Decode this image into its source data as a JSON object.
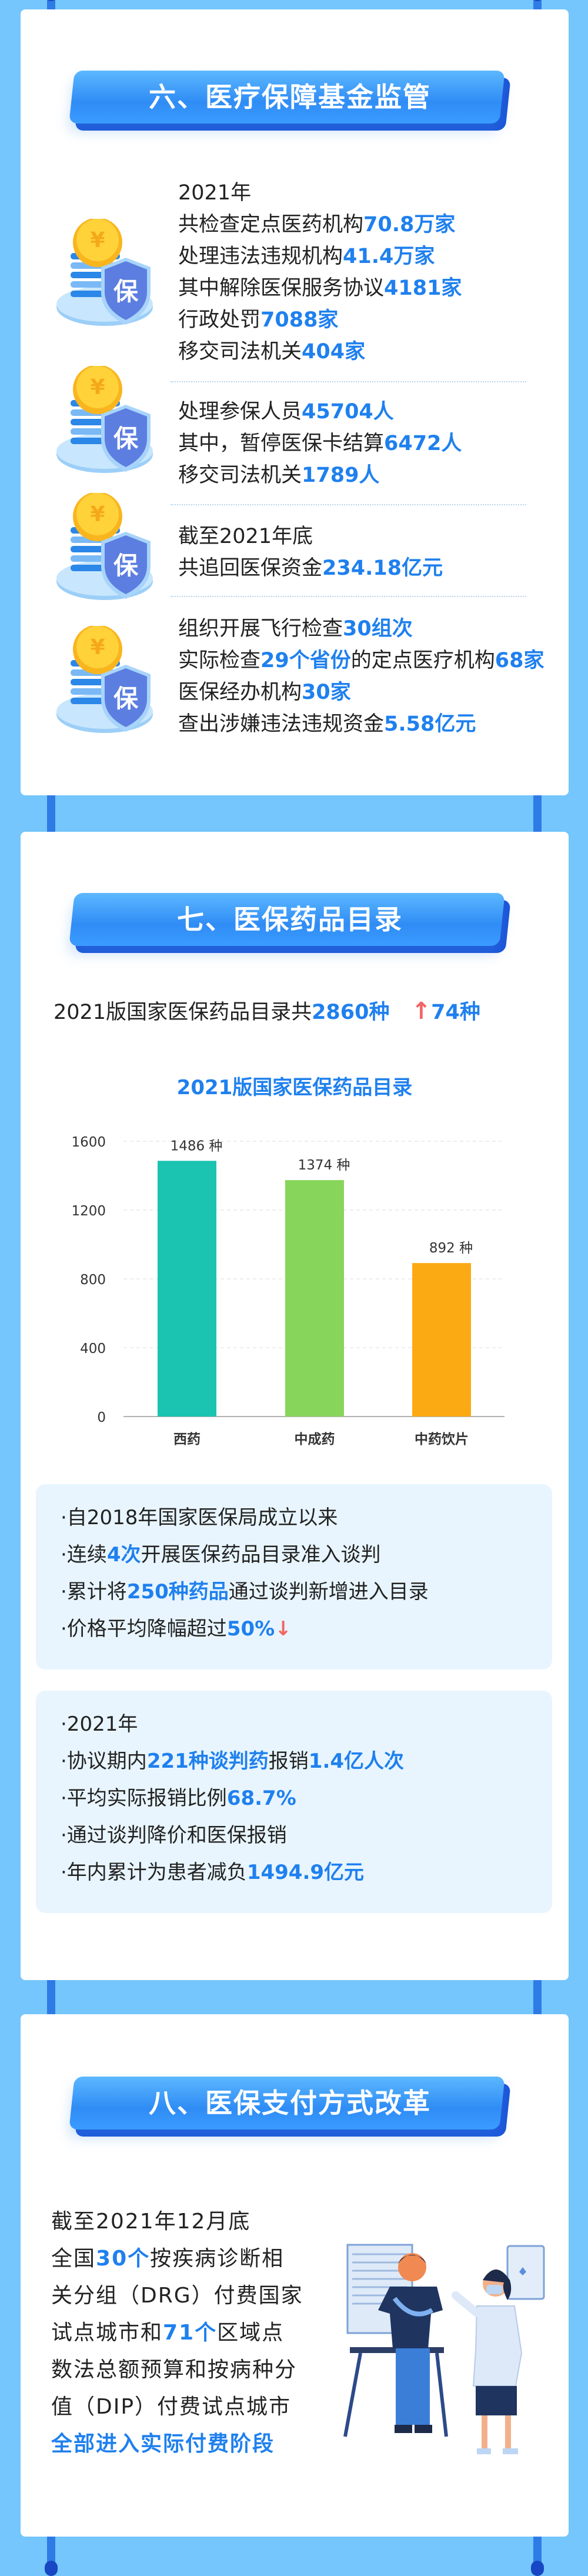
{
  "colors": {
    "background": "#74c6fc",
    "accent": "#1f80ee",
    "banner": "#2f8cf5",
    "up_arrow": "#f26565",
    "bar_1": "#1ac4b0",
    "bar_2": "#87d55a",
    "bar_3": "#fcaa14"
  },
  "fund": {
    "title": "六、医疗保障基金监管",
    "icon": {
      "name": "coin-shield-icon",
      "label": "保"
    },
    "groups": [
      {
        "lines": [
          [
            {
              "t": "2021年"
            }
          ],
          [
            {
              "t": "共检查定点医药机构"
            },
            {
              "t": "70.8万家",
              "hl": true
            }
          ],
          [
            {
              "t": "处理违法违规机构"
            },
            {
              "t": "41.4万家",
              "hl": true
            }
          ],
          [
            {
              "t": "其中解除医保服务协议"
            },
            {
              "t": "4181家",
              "hl": true
            }
          ],
          [
            {
              "t": "行政处罚"
            },
            {
              "t": "7088家",
              "hl": true
            }
          ],
          [
            {
              "t": "移交司法机关"
            },
            {
              "t": "404家",
              "hl": true
            }
          ]
        ]
      },
      {
        "lines": [
          [
            {
              "t": "处理参保人员"
            },
            {
              "t": "45704人",
              "hl": true
            }
          ],
          [
            {
              "t": "其中，暂停医保卡结算"
            },
            {
              "t": "6472人",
              "hl": true
            }
          ],
          [
            {
              "t": "移交司法机关"
            },
            {
              "t": "1789人",
              "hl": true
            }
          ]
        ]
      },
      {
        "lines": [
          [
            {
              "t": "截至2021年底"
            }
          ],
          [
            {
              "t": "共追回医保资金"
            },
            {
              "t": "234.18亿元",
              "hl": true
            }
          ]
        ]
      },
      {
        "lines": [
          [
            {
              "t": "组织开展飞行检查"
            },
            {
              "t": "30组次",
              "hl": true
            }
          ],
          [
            {
              "t": "实际检查"
            },
            {
              "t": "29个省份",
              "hl": true
            },
            {
              "t": "的定点医疗机构"
            },
            {
              "t": "68家",
              "hl": true
            }
          ],
          [
            {
              "t": "医保经办机构"
            },
            {
              "t": "30家",
              "hl": true
            }
          ],
          [
            {
              "t": "查出涉嫌违法违规资金"
            },
            {
              "t": "5.58亿元",
              "hl": true
            }
          ]
        ]
      }
    ]
  },
  "drugs": {
    "title": "七、医保药品目录",
    "summary": {
      "text": "2021版国家医保药品目录共",
      "total": "2860种",
      "increase_icon": "arrow-up-icon",
      "increase": "74种"
    },
    "box1": [
      [
        {
          "t": "·自2018年国家医保局成立以来"
        }
      ],
      [
        {
          "t": "·连续"
        },
        {
          "t": "4次",
          "hl": true
        },
        {
          "t": "开展医保药品目录准入谈判"
        }
      ],
      [
        {
          "t": "·累计将"
        },
        {
          "t": "250种药品",
          "hl": true
        },
        {
          "t": "通过谈判新增进入目录"
        }
      ],
      [
        {
          "t": "·价格平均降幅超过"
        },
        {
          "t": "50%",
          "hl": true
        },
        {
          "t": "↓",
          "down": true
        }
      ]
    ],
    "box2": [
      [
        {
          "t": "·2021年"
        }
      ],
      [
        {
          "t": "·协议期内"
        },
        {
          "t": "221种谈判药",
          "hl": true
        },
        {
          "t": "报销"
        },
        {
          "t": "1.4亿人次",
          "hl": true
        }
      ],
      [
        {
          "t": "·平均实际报销比例"
        },
        {
          "t": "68.7%",
          "hl": true
        }
      ],
      [
        {
          "t": "·通过谈判降价和医保报销"
        }
      ],
      [
        {
          "t": "·年内累计为患者减负"
        },
        {
          "t": "1494.9亿元",
          "hl": true
        }
      ]
    ]
  },
  "chart_data": {
    "type": "bar",
    "title": "2021版国家医保药品目录",
    "categories": [
      "西药",
      "中成药",
      "中药饮片"
    ],
    "values": [
      1486,
      1374,
      892
    ],
    "data_labels": [
      "1486 种",
      "1374 种",
      "892 种"
    ],
    "yticks": [
      "0",
      "400",
      "800",
      "1200",
      "1600"
    ],
    "ylim": [
      0,
      1600
    ],
    "grid": true,
    "xlabel": "",
    "ylabel": ""
  },
  "payment": {
    "title": "八、医保支付方式改革",
    "lines": [
      [
        {
          "t": "截至2021年12月底"
        }
      ],
      [
        {
          "t": "全国"
        },
        {
          "t": "30个",
          "hl": true
        },
        {
          "t": "按疾病诊断相"
        }
      ],
      [
        {
          "t": "关分组（DRG）付费国家"
        }
      ],
      [
        {
          "t": "试点城市和"
        },
        {
          "t": "71个",
          "hl": true
        },
        {
          "t": "区域点"
        }
      ],
      [
        {
          "t": "数法总额预算和按病种分"
        }
      ],
      [
        {
          "t": "值（DIP）付费试点城市"
        }
      ],
      [
        {
          "t": "全部进入实际付费阶段",
          "hl": true
        }
      ]
    ],
    "illustration": "doctor-patient-illustration"
  }
}
